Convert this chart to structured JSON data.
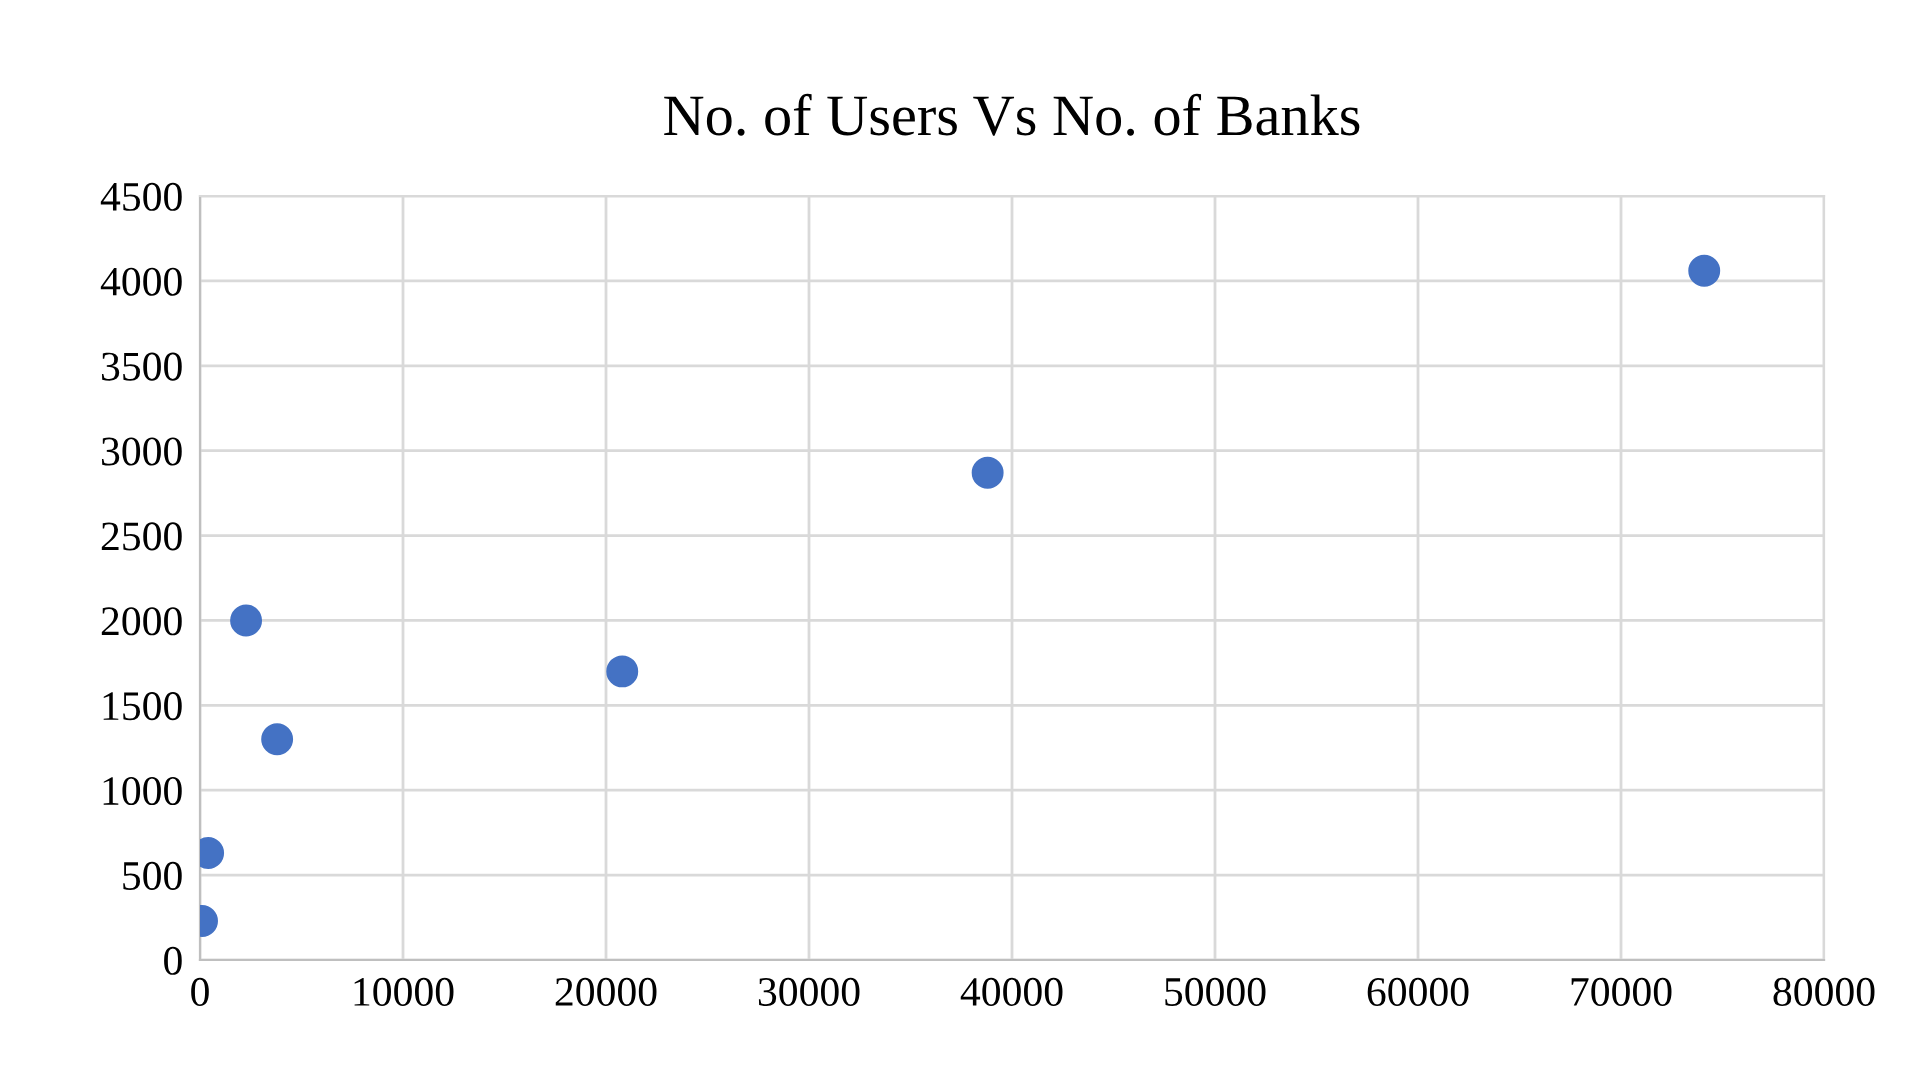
{
  "chart_data": {
    "type": "scatter",
    "title": "No. of Users Vs No. of Banks",
    "x": [
      100,
      400,
      2270,
      3800,
      20800,
      38800,
      74100
    ],
    "series": [
      {
        "color": "#4472c4",
        "values": [
          230,
          630,
          2000,
          1300,
          1700,
          2870,
          4060
        ]
      }
    ],
    "xlim": [
      0,
      80000
    ],
    "xticks": [
      0,
      10000,
      20000,
      30000,
      40000,
      50000,
      60000,
      70000,
      80000
    ],
    "ylim": [
      0,
      4500
    ],
    "yticks": [
      0,
      500,
      1000,
      1500,
      2000,
      2500,
      3000,
      3500,
      4000,
      4500
    ],
    "grid": true,
    "marker": "circle",
    "legend": false
  }
}
